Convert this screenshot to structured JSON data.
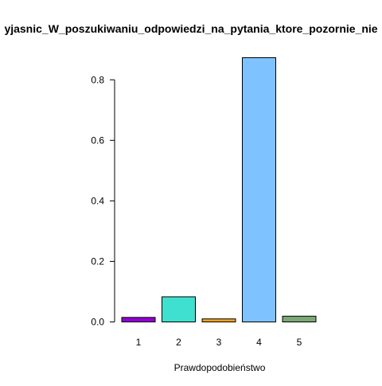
{
  "chart_data": {
    "type": "bar",
    "title": "yjasnic_W_poszukiwaniu_odpowiedzi_na_pytania_ktore_pozornie_nie",
    "xlabel": "Prawdopodobieństwo",
    "ylabel": "",
    "categories": [
      "1",
      "2",
      "3",
      "4",
      "5"
    ],
    "values": [
      0.015,
      0.083,
      0.01,
      0.873,
      0.019
    ],
    "colors": [
      "#9400D3",
      "#40E0D0",
      "#F4A21C",
      "#7EC3FF",
      "#7BA877"
    ],
    "ylim": [
      0,
      0.88
    ],
    "yticks": [
      0.0,
      0.2,
      0.4,
      0.6,
      0.8
    ],
    "ytick_labels": [
      "0.0",
      "0.2",
      "0.4",
      "0.6",
      "0.8"
    ],
    "grid": false,
    "legend": "none"
  }
}
